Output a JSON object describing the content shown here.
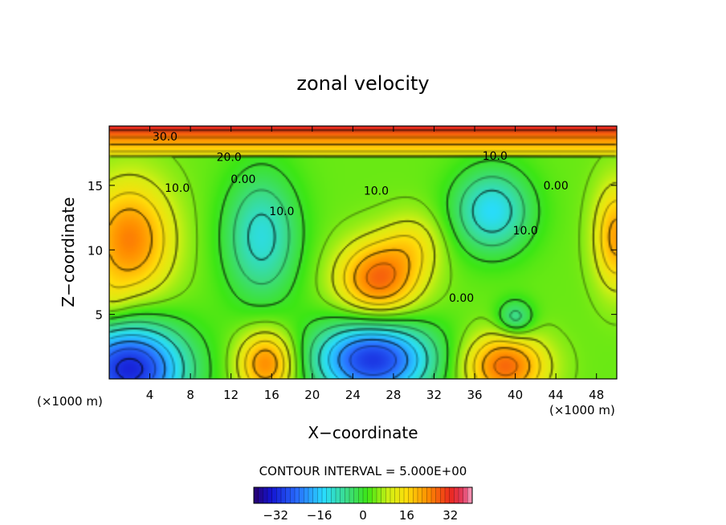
{
  "chart_data": {
    "type": "heatmap",
    "title": "zonal velocity",
    "xlabel": "X−coordinate",
    "ylabel": "Z−coordinate",
    "x_unit_left": "(×1000 m)",
    "x_unit_right": "(×1000 m)",
    "xlim": [
      0,
      50
    ],
    "ylim": [
      0,
      19.6
    ],
    "x_ticks": [
      4,
      8,
      12,
      16,
      20,
      24,
      28,
      32,
      36,
      40,
      44,
      48
    ],
    "y_ticks": [
      5,
      10,
      15
    ],
    "contour_interval_text": "CONTOUR INTERVAL = 5.000E+00",
    "contour_interval": 5,
    "contour_labels": [
      {
        "text": "30.0",
        "x": 5.5,
        "y": 18.8
      },
      {
        "text": "20.0",
        "x": 11.8,
        "y": 17.2
      },
      {
        "text": "10.0",
        "x": 38.0,
        "y": 17.3
      },
      {
        "text": "10.0",
        "x": 6.7,
        "y": 14.8
      },
      {
        "text": "0.00",
        "x": 13.2,
        "y": 15.5
      },
      {
        "text": "10.0",
        "x": 17.0,
        "y": 13.0
      },
      {
        "text": "10.0",
        "x": 26.3,
        "y": 14.6
      },
      {
        "text": "0.00",
        "x": 44.0,
        "y": 15.0
      },
      {
        "text": "10.0",
        "x": 41.0,
        "y": 11.5
      },
      {
        "text": "0.00",
        "x": 34.7,
        "y": 6.3
      }
    ],
    "features": [
      {
        "kind": "high",
        "x": 2.0,
        "y": 10.8,
        "value": 25,
        "rx": 4.2,
        "ry": 4.5
      },
      {
        "kind": "high",
        "x": 26.5,
        "y": 7.7,
        "value": 27,
        "rx": 4.0,
        "ry": 3.0
      },
      {
        "kind": "low",
        "x": 15.0,
        "y": 11.0,
        "value": -12,
        "rx": 3.6,
        "ry": 4.8
      },
      {
        "kind": "low",
        "x": 37.7,
        "y": 13.0,
        "value": -14,
        "rx": 3.8,
        "ry": 3.2
      },
      {
        "kind": "low",
        "x": 40.0,
        "y": 4.7,
        "value": -8,
        "rx": 1.8,
        "ry": 1.4
      },
      {
        "kind": "low",
        "x": 2.0,
        "y": 0.8,
        "value": -32,
        "rx": 5.5,
        "ry": 3.5
      },
      {
        "kind": "low",
        "x": 26.0,
        "y": 1.5,
        "value": -30,
        "rx": 5.8,
        "ry": 3.0
      },
      {
        "kind": "high",
        "x": 15.5,
        "y": 1.2,
        "value": 25,
        "rx": 2.8,
        "ry": 2.5
      },
      {
        "kind": "high",
        "x": 39.0,
        "y": 1.0,
        "value": 27,
        "rx": 4.0,
        "ry": 2.5
      },
      {
        "kind": "high",
        "x": 50.0,
        "y": 11.0,
        "value": 22,
        "rx": 2.2,
        "ry": 4.0
      },
      {
        "kind": "high",
        "x": 30.0,
        "y": 10.5,
        "value": 12,
        "rx": 3.0,
        "ry": 2.5
      },
      {
        "kind": "low",
        "x": 0.0,
        "y": 6.0,
        "value": 8,
        "rx": 2.0,
        "ry": 2.0
      },
      {
        "kind": "layer",
        "y_start": 17.3,
        "y_end": 19.6,
        "value_bottom": 12,
        "value_top": 33
      }
    ],
    "colorbar": {
      "min": -40,
      "max": 40,
      "tick_values": [
        -32,
        -16,
        0,
        16,
        32
      ],
      "tick_labels": [
        "−32",
        "−16",
        "0",
        "16",
        "32"
      ]
    }
  }
}
